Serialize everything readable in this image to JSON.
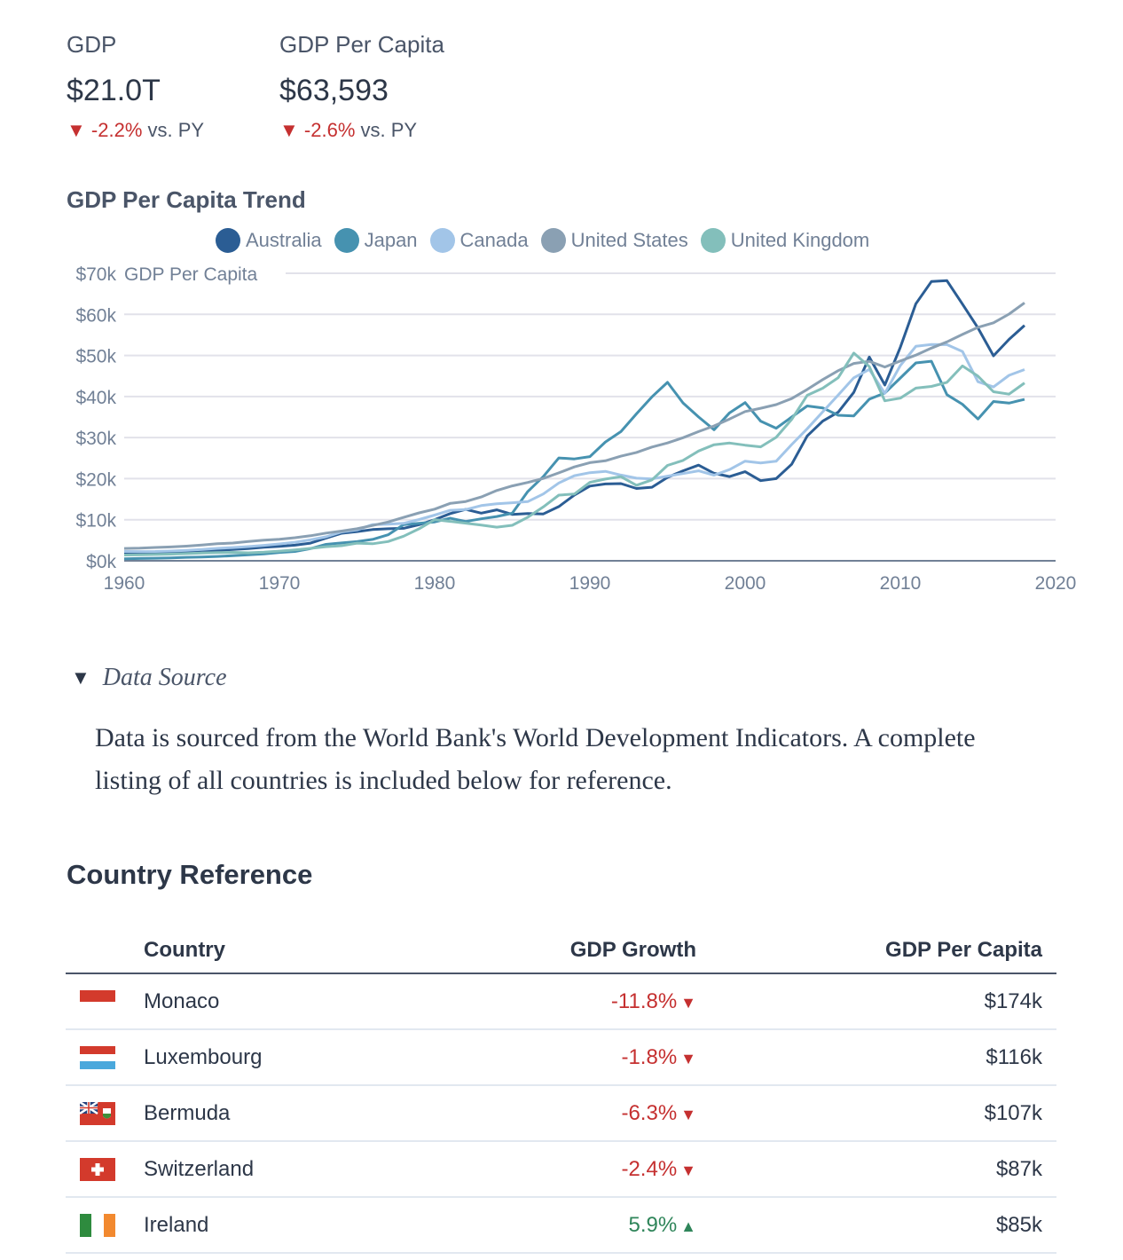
{
  "kpis": [
    {
      "title": "GDP",
      "value": "$21.0T",
      "delta": "-2.2%",
      "delta_arrow": "▼",
      "comparison": "vs. PY"
    },
    {
      "title": "GDP Per Capita",
      "value": "$63,593",
      "delta": "-2.6%",
      "delta_arrow": "▼",
      "comparison": "vs. PY"
    }
  ],
  "colors": {
    "negative": "#c53030",
    "positive": "#2f855a",
    "Australia": "#2b5d94",
    "Japan": "#4692b0",
    "Canada": "#a2c5e8",
    "United States": "#8aa0b3",
    "United Kingdom": "#83bfbb"
  },
  "chart_data": {
    "type": "line",
    "title": "GDP Per Capita Trend",
    "xlabel": "",
    "ylabel": "GDP Per Capita",
    "xlim": [
      1960,
      2020
    ],
    "ylim": [
      0,
      70000
    ],
    "x_ticks": [
      "1960",
      "1970",
      "1980",
      "1990",
      "2000",
      "2010",
      "2020"
    ],
    "y_ticks": [
      "$0k",
      "$10k",
      "$20k",
      "$30k",
      "$40k",
      "$50k",
      "$60k",
      "$70k"
    ],
    "grid": true,
    "legend_position": "top-center",
    "x": [
      1960,
      1961,
      1962,
      1963,
      1964,
      1965,
      1966,
      1967,
      1968,
      1969,
      1970,
      1971,
      1972,
      1973,
      1974,
      1975,
      1976,
      1977,
      1978,
      1979,
      1980,
      1981,
      1982,
      1983,
      1984,
      1985,
      1986,
      1987,
      1988,
      1989,
      1990,
      1991,
      1992,
      1993,
      1994,
      1995,
      1996,
      1997,
      1998,
      1999,
      2000,
      2001,
      2002,
      2003,
      2004,
      2005,
      2006,
      2007,
      2008,
      2009,
      2010,
      2011,
      2012,
      2013,
      2014,
      2015,
      2016,
      2017,
      2018
    ],
    "series": [
      {
        "name": "Australia",
        "values": [
          1800,
          1900,
          1950,
          2100,
          2300,
          2500,
          2550,
          2750,
          2950,
          3300,
          3500,
          3800,
          4300,
          5500,
          6700,
          7100,
          7600,
          7800,
          7900,
          8800,
          10000,
          11500,
          12500,
          11600,
          12400,
          11300,
          11500,
          11400,
          13200,
          16000,
          18200,
          18700,
          18800,
          17600,
          17900,
          20300,
          21900,
          23300,
          21300,
          20500,
          21700,
          19500,
          20000,
          23500,
          30400,
          34000,
          36200,
          41000,
          49600,
          42800,
          52000,
          62600,
          68000,
          68200,
          62500,
          56700,
          49900,
          53900,
          57300
        ]
      },
      {
        "name": "Japan",
        "values": [
          480,
          560,
          630,
          720,
          840,
          920,
          1060,
          1230,
          1450,
          1670,
          2040,
          2270,
          2970,
          3990,
          4350,
          4670,
          5200,
          6340,
          8820,
          9110,
          9460,
          10360,
          9580,
          10210,
          10790,
          11580,
          16880,
          20510,
          25050,
          24810,
          25360,
          28930,
          31460,
          35770,
          39930,
          43440,
          38440,
          35020,
          31900,
          36030,
          38530,
          34000,
          32280,
          35010,
          37690,
          37220,
          35430,
          35280,
          39340,
          40860,
          44510,
          48170,
          48600,
          40450,
          38110,
          34520,
          38790,
          38390,
          39290
        ]
      },
      {
        "name": "Canada",
        "values": [
          2260,
          2240,
          2270,
          2380,
          2560,
          2770,
          3020,
          3220,
          3460,
          3760,
          4100,
          4520,
          5100,
          5840,
          7030,
          7520,
          8810,
          8930,
          9120,
          10040,
          11130,
          12300,
          12470,
          13430,
          13870,
          14120,
          14420,
          16270,
          18940,
          20720,
          21450,
          21770,
          20880,
          20120,
          19940,
          20610,
          21230,
          21900,
          20850,
          22200,
          24270,
          23820,
          24250,
          28300,
          32140,
          36270,
          40380,
          44540,
          46600,
          40770,
          47560,
          52220,
          52670,
          52640,
          50960,
          43600,
          42320,
          45150,
          46550
        ]
      },
      {
        "name": "United States",
        "values": [
          3000,
          3070,
          3240,
          3370,
          3570,
          3830,
          4150,
          4330,
          4700,
          5030,
          5230,
          5610,
          6090,
          6730,
          7230,
          7800,
          8590,
          9450,
          10560,
          11670,
          12580,
          13980,
          14430,
          15540,
          17120,
          18240,
          19070,
          20040,
          21420,
          22860,
          23890,
          24340,
          25470,
          26380,
          27690,
          28690,
          29970,
          31460,
          32850,
          34520,
          36330,
          37130,
          38020,
          39490,
          41720,
          44110,
          46300,
          48050,
          48570,
          47190,
          48650,
          50070,
          51780,
          53290,
          55120,
          56840,
          57950,
          60060,
          62800
        ]
      },
      {
        "name": "United Kingdom",
        "values": [
          1400,
          1470,
          1530,
          1610,
          1750,
          1880,
          1990,
          2060,
          1950,
          2100,
          2350,
          2650,
          3030,
          3430,
          3670,
          4300,
          4140,
          4680,
          5980,
          7800,
          10030,
          9600,
          9150,
          8690,
          8180,
          8650,
          10610,
          13120,
          15990,
          16240,
          19100,
          19900,
          20490,
          18390,
          19710,
          23230,
          24440,
          26730,
          28270,
          28670,
          28150,
          27750,
          30060,
          34420,
          40290,
          42030,
          44600,
          50570,
          47290,
          38950,
          39600,
          42040,
          42460,
          43450,
          47450,
          44970,
          41150,
          40570,
          43300
        ]
      }
    ]
  },
  "chart_labels": {
    "y_axis_title": "GDP Per Capita"
  },
  "data_source": {
    "summary": "Data Source",
    "toggle_icon": "▼",
    "body": "Data is sourced from the World Bank's World Development Indicators. A complete listing of all countries is included below for reference."
  },
  "country_reference": {
    "title": "Country Reference",
    "columns": [
      "",
      "Country",
      "GDP Growth",
      "GDP Per Capita"
    ],
    "rows": [
      {
        "flag": "monaco",
        "country": "Monaco",
        "growth": "-11.8%",
        "direction": "down",
        "arrow": "▼",
        "per_capita": "$174k"
      },
      {
        "flag": "luxembourg",
        "country": "Luxembourg",
        "growth": "-1.8%",
        "direction": "down",
        "arrow": "▼",
        "per_capita": "$116k"
      },
      {
        "flag": "bermuda",
        "country": "Bermuda",
        "growth": "-6.3%",
        "direction": "down",
        "arrow": "▼",
        "per_capita": "$107k"
      },
      {
        "flag": "switzerland",
        "country": "Switzerland",
        "growth": "-2.4%",
        "direction": "down",
        "arrow": "▼",
        "per_capita": "$87k"
      },
      {
        "flag": "ireland",
        "country": "Ireland",
        "growth": "5.9%",
        "direction": "up",
        "arrow": "▲",
        "per_capita": "$85k"
      }
    ]
  }
}
